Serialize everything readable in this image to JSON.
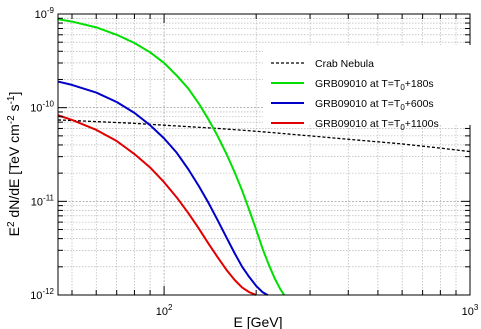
{
  "chart_data": {
    "type": "line",
    "xlabel": {
      "main": "E [GeV]"
    },
    "ylabel": {
      "p1": "E",
      "p1_sup": "2",
      "p2": " dN/dE [TeV cm",
      "p2_sup": "-2",
      "p3": " s",
      "p3_sup": "-1",
      "p4": "]"
    },
    "xscale": "log",
    "yscale": "log",
    "xlim": [
      45,
      1000
    ],
    "ylim": [
      1e-12,
      1e-09
    ],
    "grid": true,
    "legend_position": "top-right",
    "x_ticks": [
      {
        "value": 100,
        "base": "10",
        "exp": "2"
      },
      {
        "value": 1000,
        "base": "10",
        "exp": "3"
      }
    ],
    "y_ticks": [
      {
        "value": 1e-12,
        "base": "10",
        "exp": "-12"
      },
      {
        "value": 1e-11,
        "base": "10",
        "exp": "-11"
      },
      {
        "value": 1e-10,
        "base": "10",
        "exp": "-10"
      },
      {
        "value": 1e-09,
        "base": "10",
        "exp": "-9"
      }
    ],
    "series": [
      {
        "name": "Crab Nebula",
        "color": "#000000",
        "dash": "dashed",
        "x": [
          45,
          60,
          80,
          100,
          150,
          200,
          300,
          400,
          600,
          800,
          1000
        ],
        "y": [
          7.4e-11,
          7.1e-11,
          6.8e-11,
          6.5e-11,
          6e-11,
          5.6e-11,
          5e-11,
          4.6e-11,
          4.1e-11,
          3.7e-11,
          3.4e-11
        ]
      },
      {
        "name_parts": {
          "a": "GRB09010 at T=T",
          "sub": "0",
          "b": "+180s"
        },
        "color": "#00e000",
        "dash": "solid",
        "x": [
          45,
          50,
          60,
          70,
          80,
          90,
          100,
          110,
          120,
          130,
          140,
          150,
          160,
          170,
          180,
          190,
          200,
          210,
          220,
          230,
          240,
          247
        ],
        "y": [
          8.8e-10,
          8.3e-10,
          7.2e-10,
          6e-10,
          4.9e-10,
          3.9e-10,
          3e-10,
          2.2e-10,
          1.6e-10,
          1.1e-10,
          7.4e-11,
          4.9e-11,
          3.2e-11,
          2.05e-11,
          1.3e-11,
          8e-12,
          5e-12,
          3.1e-12,
          2.1e-12,
          1.5e-12,
          1.15e-12,
          1e-12
        ]
      },
      {
        "name_parts": {
          "a": "GRB09010 at T=T",
          "sub": "0",
          "b": "+600s"
        },
        "color": "#0000c8",
        "dash": "solid",
        "x": [
          45,
          50,
          60,
          70,
          80,
          90,
          100,
          110,
          120,
          130,
          140,
          150,
          160,
          170,
          180,
          190,
          200,
          210,
          218
        ],
        "y": [
          1.9e-10,
          1.75e-10,
          1.45e-10,
          1.15e-10,
          8.8e-11,
          6.5e-11,
          4.7e-11,
          3.3e-11,
          2.2e-11,
          1.45e-11,
          9.5e-12,
          6.2e-12,
          4.1e-12,
          2.8e-12,
          2e-12,
          1.55e-12,
          1.25e-12,
          1.07e-12,
          1e-12
        ]
      },
      {
        "name_parts": {
          "a": "GRB09010 at T=T",
          "sub": "0",
          "b": "+1100s"
        },
        "color": "#e00000",
        "dash": "solid",
        "x": [
          45,
          50,
          60,
          70,
          80,
          90,
          100,
          110,
          120,
          130,
          140,
          150,
          160,
          170,
          180,
          190,
          200
        ],
        "y": [
          8.3e-11,
          7.4e-11,
          5.8e-11,
          4.4e-11,
          3.2e-11,
          2.3e-11,
          1.6e-11,
          1.1e-11,
          7.5e-12,
          5.1e-12,
          3.5e-12,
          2.5e-12,
          1.85e-12,
          1.45e-12,
          1.2e-12,
          1.07e-12,
          1e-12
        ]
      }
    ]
  }
}
